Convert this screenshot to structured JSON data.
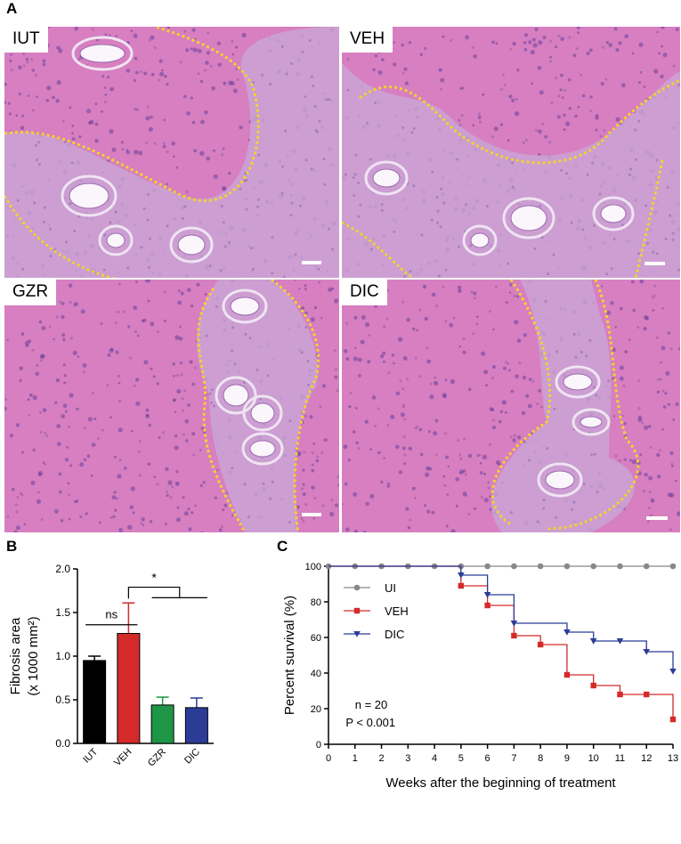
{
  "figure": {
    "panel_a": {
      "letter": "A",
      "micrographs": [
        {
          "label": "IUT"
        },
        {
          "label": "VEH"
        },
        {
          "label": "GZR"
        },
        {
          "label": "DIC"
        }
      ],
      "outline_color": "#f2d22e",
      "tissue_color": "#d77fc0",
      "scar_color": "#c9a6d6"
    },
    "panel_b": {
      "letter": "B"
    },
    "panel_c": {
      "letter": "C"
    }
  },
  "chart_data": [
    {
      "type": "bar",
      "panel": "B",
      "categories": [
        "IUT",
        "VEH",
        "GZR",
        "DIC"
      ],
      "values": [
        0.95,
        1.26,
        0.44,
        0.41
      ],
      "errors": [
        0.05,
        0.35,
        0.09,
        0.11
      ],
      "colors": [
        "#000000",
        "#d42a2a",
        "#1e9645",
        "#2a3c96"
      ],
      "ylabel": "Fibrosis area",
      "ylabel2": "(x 1000 mm²)",
      "ylim": [
        0,
        2.0
      ],
      "yticks": [
        "0.0",
        "0.5",
        "1.0",
        "1.5",
        "2.0"
      ],
      "annotations": [
        {
          "text": "ns",
          "between": [
            "IUT",
            "VEH"
          ]
        },
        {
          "text": "*",
          "between": [
            "VEH",
            "GZR+DIC"
          ]
        }
      ]
    },
    {
      "type": "line",
      "panel": "C",
      "xlabel": "Weeks after the beginning of treatment",
      "ylabel": "Percent survival (%)",
      "xlim": [
        0,
        13
      ],
      "ylim": [
        0,
        100
      ],
      "xticks": [
        "0",
        "1",
        "2",
        "3",
        "4",
        "5",
        "6",
        "7",
        "8",
        "9",
        "10",
        "11",
        "12",
        "13"
      ],
      "yticks": [
        "0",
        "20",
        "40",
        "60",
        "80",
        "100"
      ],
      "legend_position": "top-left",
      "series": [
        {
          "name": "UI",
          "color": "#888888",
          "marker": "circle",
          "x": [
            0,
            1,
            2,
            3,
            4,
            5,
            6,
            7,
            8,
            9,
            10,
            11,
            12,
            13
          ],
          "y": [
            100,
            100,
            100,
            100,
            100,
            100,
            100,
            100,
            100,
            100,
            100,
            100,
            100,
            100
          ]
        },
        {
          "name": "VEH",
          "color": "#d42a2a",
          "marker": "square",
          "x": [
            5,
            6,
            7,
            8,
            9,
            10,
            11,
            12,
            13
          ],
          "y": [
            89,
            78,
            61,
            56,
            39,
            33,
            28,
            28,
            14
          ]
        },
        {
          "name": "DIC",
          "color": "#2a3c96",
          "marker": "triangle",
          "x": [
            5,
            6,
            7,
            9,
            10,
            11,
            12,
            13
          ],
          "y": [
            95,
            84,
            68,
            63,
            58,
            58,
            52,
            41
          ]
        }
      ],
      "annotations": [
        "n = 20",
        "P < 0.001"
      ]
    }
  ]
}
